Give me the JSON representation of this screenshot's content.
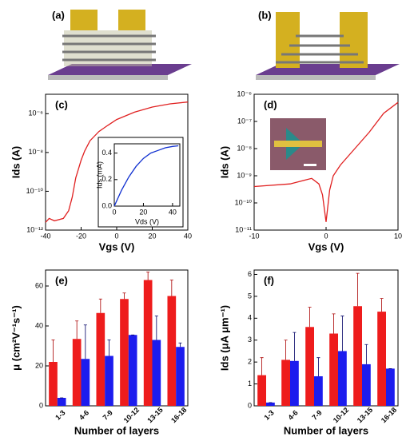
{
  "images": [
    {
      "label": "(a)"
    },
    {
      "label": "(b)"
    }
  ],
  "chart_data": [
    {
      "type": "line",
      "panel": "(c)",
      "log": true,
      "xlabel": "Vgs (V)",
      "ylabel": "Ids (A)",
      "xlim": [
        -40,
        40
      ],
      "xticks": [
        -40,
        -20,
        0,
        20,
        40
      ],
      "ylim": [
        1e-12,
        1e-05
      ],
      "yticks": [
        {
          "value": 1e-12,
          "label": "10⁻¹²"
        },
        {
          "value": 1e-10,
          "label": "10⁻¹⁰"
        },
        {
          "value": 1e-08,
          "label": "10⁻⁸"
        },
        {
          "value": 1e-06,
          "label": "10⁻⁶"
        }
      ],
      "series": [
        {
          "color": "#e02020",
          "x": [
            -40,
            -38,
            -35,
            -30,
            -27,
            -25,
            -23,
            -22,
            -20,
            -18,
            -15,
            -10,
            -5,
            0,
            10,
            20,
            30,
            40
          ],
          "values": [
            2.5e-12,
            4e-12,
            3e-12,
            4e-12,
            1e-11,
            5e-11,
            5e-10,
            1e-09,
            4e-09,
            1.2e-08,
            4e-08,
            1.2e-07,
            2.5e-07,
            5e-07,
            1.2e-06,
            2.2e-06,
            3.2e-06,
            4e-06
          ]
        }
      ]
    },
    {
      "type": "line",
      "xlabel": "Vds (V)",
      "ylabel": "Ids (mA)",
      "xlim": [
        0,
        45
      ],
      "xticks": [
        0,
        20,
        40
      ],
      "ylim": [
        0,
        0.47
      ],
      "yticks": [
        {
          "value": 0,
          "label": "0.0"
        },
        0.2,
        0.4
      ],
      "series": [
        {
          "color": "#1030d0",
          "x": [
            0,
            5,
            10,
            15,
            20,
            25,
            30,
            35,
            40,
            44
          ],
          "values": [
            0,
            0.12,
            0.22,
            0.3,
            0.36,
            0.4,
            0.42,
            0.44,
            0.45,
            0.455
          ]
        }
      ]
    },
    {
      "type": "line",
      "panel": "(d)",
      "log": true,
      "xlabel": "Vgs (V)",
      "ylabel": "Ids (A)",
      "xlim": [
        -10,
        10
      ],
      "xticks": [
        -10,
        0,
        10
      ],
      "ylim": [
        1e-11,
        1e-06
      ],
      "yticks": [
        {
          "value": 1e-11,
          "label": "10⁻¹¹"
        },
        {
          "value": 1e-10,
          "label": "10⁻¹⁰"
        },
        {
          "value": 1e-09,
          "label": "10⁻⁹"
        },
        {
          "value": 1e-08,
          "label": "10⁻⁸"
        },
        {
          "value": 1e-07,
          "label": "10⁻⁷"
        },
        {
          "value": 1e-06,
          "label": "10⁻⁶"
        }
      ],
      "series": [
        {
          "color": "#e02020",
          "x": [
            -10,
            -5,
            -2,
            -1,
            -0.5,
            0,
            0.5,
            1,
            2,
            4,
            6,
            8,
            10
          ],
          "values": [
            4e-10,
            5e-10,
            8e-10,
            5e-10,
            2e-10,
            2e-11,
            3e-10,
            1e-09,
            2.5e-09,
            1e-08,
            4e-08,
            2e-07,
            5e-07
          ]
        }
      ]
    },
    {
      "type": "bar",
      "panel": "(e)",
      "xlabel": "Number of layers",
      "ylabel": "μ (cm²V⁻¹s⁻¹)",
      "categories": [
        "1-3",
        "4-6",
        "7-9",
        "10-12",
        "13-15",
        "16-18"
      ],
      "ylim": [
        0,
        68
      ],
      "yticks": [
        0,
        20,
        40,
        60
      ],
      "series": [
        {
          "color": "#ee1c1c",
          "values": [
            22,
            33.5,
            46.5,
            53.5,
            63,
            55
          ],
          "errors": [
            11,
            9,
            7,
            3,
            4,
            8
          ]
        },
        {
          "color": "#1c1cee",
          "values": [
            4,
            23.5,
            25,
            35.5,
            33,
            29.5
          ],
          "errors": [
            0,
            17,
            8,
            0,
            12,
            2
          ]
        }
      ]
    },
    {
      "type": "bar",
      "panel": "(f)",
      "xlabel": "Number of layers",
      "ylabel": "Ids (μA μm⁻¹)",
      "categories": [
        "1-3",
        "4-6",
        "7-9",
        "10-12",
        "13-15",
        "16-18"
      ],
      "ylim": [
        0,
        6.2
      ],
      "yticks": [
        0,
        1,
        2,
        3,
        4,
        5,
        6
      ],
      "series": [
        {
          "color": "#ee1c1c",
          "values": [
            1.4,
            2.1,
            3.6,
            3.3,
            4.55,
            4.3
          ],
          "errors": [
            0.8,
            0.9,
            0.9,
            0.9,
            1.5,
            0.6
          ]
        },
        {
          "color": "#1c1cee",
          "values": [
            0.15,
            2.05,
            1.35,
            2.5,
            1.9,
            1.7
          ],
          "errors": [
            0,
            1.3,
            0.85,
            1.6,
            0.9,
            0
          ]
        }
      ]
    }
  ]
}
